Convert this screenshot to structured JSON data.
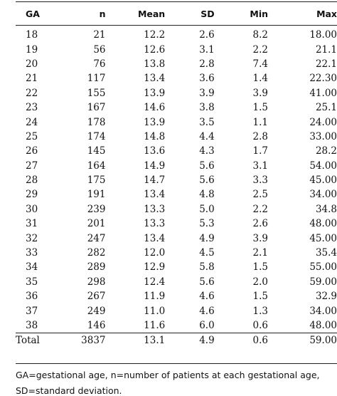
{
  "table": {
    "headers": [
      "GA",
      "n",
      "Mean",
      "SD",
      "Min",
      "Max"
    ],
    "rows": [
      [
        "18",
        "21",
        "12.2",
        "2.6",
        "8.2",
        "18.00"
      ],
      [
        "19",
        "56",
        "12.6",
        "3.1",
        "2.2",
        "21.1"
      ],
      [
        "20",
        "76",
        "13.8",
        "2.8",
        "7.4",
        "22.1"
      ],
      [
        "21",
        "117",
        "13.4",
        "3.6",
        "1.4",
        "22.30"
      ],
      [
        "22",
        "155",
        "13.9",
        "3.9",
        "3.9",
        "41.00"
      ],
      [
        "23",
        "167",
        "14.6",
        "3.8",
        "1.5",
        "25.1"
      ],
      [
        "24",
        "178",
        "13.9",
        "3.5",
        "1.1",
        "24.00"
      ],
      [
        "25",
        "174",
        "14.8",
        "4.4",
        "2.8",
        "33.00"
      ],
      [
        "26",
        "145",
        "13.6",
        "4.3",
        "1.7",
        "28.2"
      ],
      [
        "27",
        "164",
        "14.9",
        "5.6",
        "3.1",
        "54.00"
      ],
      [
        "28",
        "175",
        "14.7",
        "5.6",
        "3.3",
        "45.00"
      ],
      [
        "29",
        "191",
        "13.4",
        "4.8",
        "2.5",
        "34.00"
      ],
      [
        "30",
        "239",
        "13.3",
        "5.0",
        "2.2",
        "34.8"
      ],
      [
        "31",
        "201",
        "13.3",
        "5.3",
        "2.6",
        "48.00"
      ],
      [
        "32",
        "247",
        "13.4",
        "4.9",
        "3.9",
        "45.00"
      ],
      [
        "33",
        "282",
        "12.0",
        "4.5",
        "2.1",
        "35.4"
      ],
      [
        "34",
        "289",
        "12.9",
        "5.8",
        "1.5",
        "55.00"
      ],
      [
        "35",
        "298",
        "12.4",
        "5.6",
        "2.0",
        "59.00"
      ],
      [
        "36",
        "267",
        "11.9",
        "4.6",
        "1.5",
        "32.9"
      ],
      [
        "37",
        "249",
        "11.0",
        "4.6",
        "1.3",
        "34.00"
      ],
      [
        "38",
        "146",
        "11.6",
        "6.0",
        "0.6",
        "48.00"
      ]
    ],
    "total": [
      "Total",
      "3837",
      "13.1",
      "4.9",
      "0.6",
      "59.00"
    ]
  },
  "footnote": {
    "line1": "GA=gestational age, n=number of patients at each gestational age,",
    "line2": "SD=standard deviation."
  }
}
